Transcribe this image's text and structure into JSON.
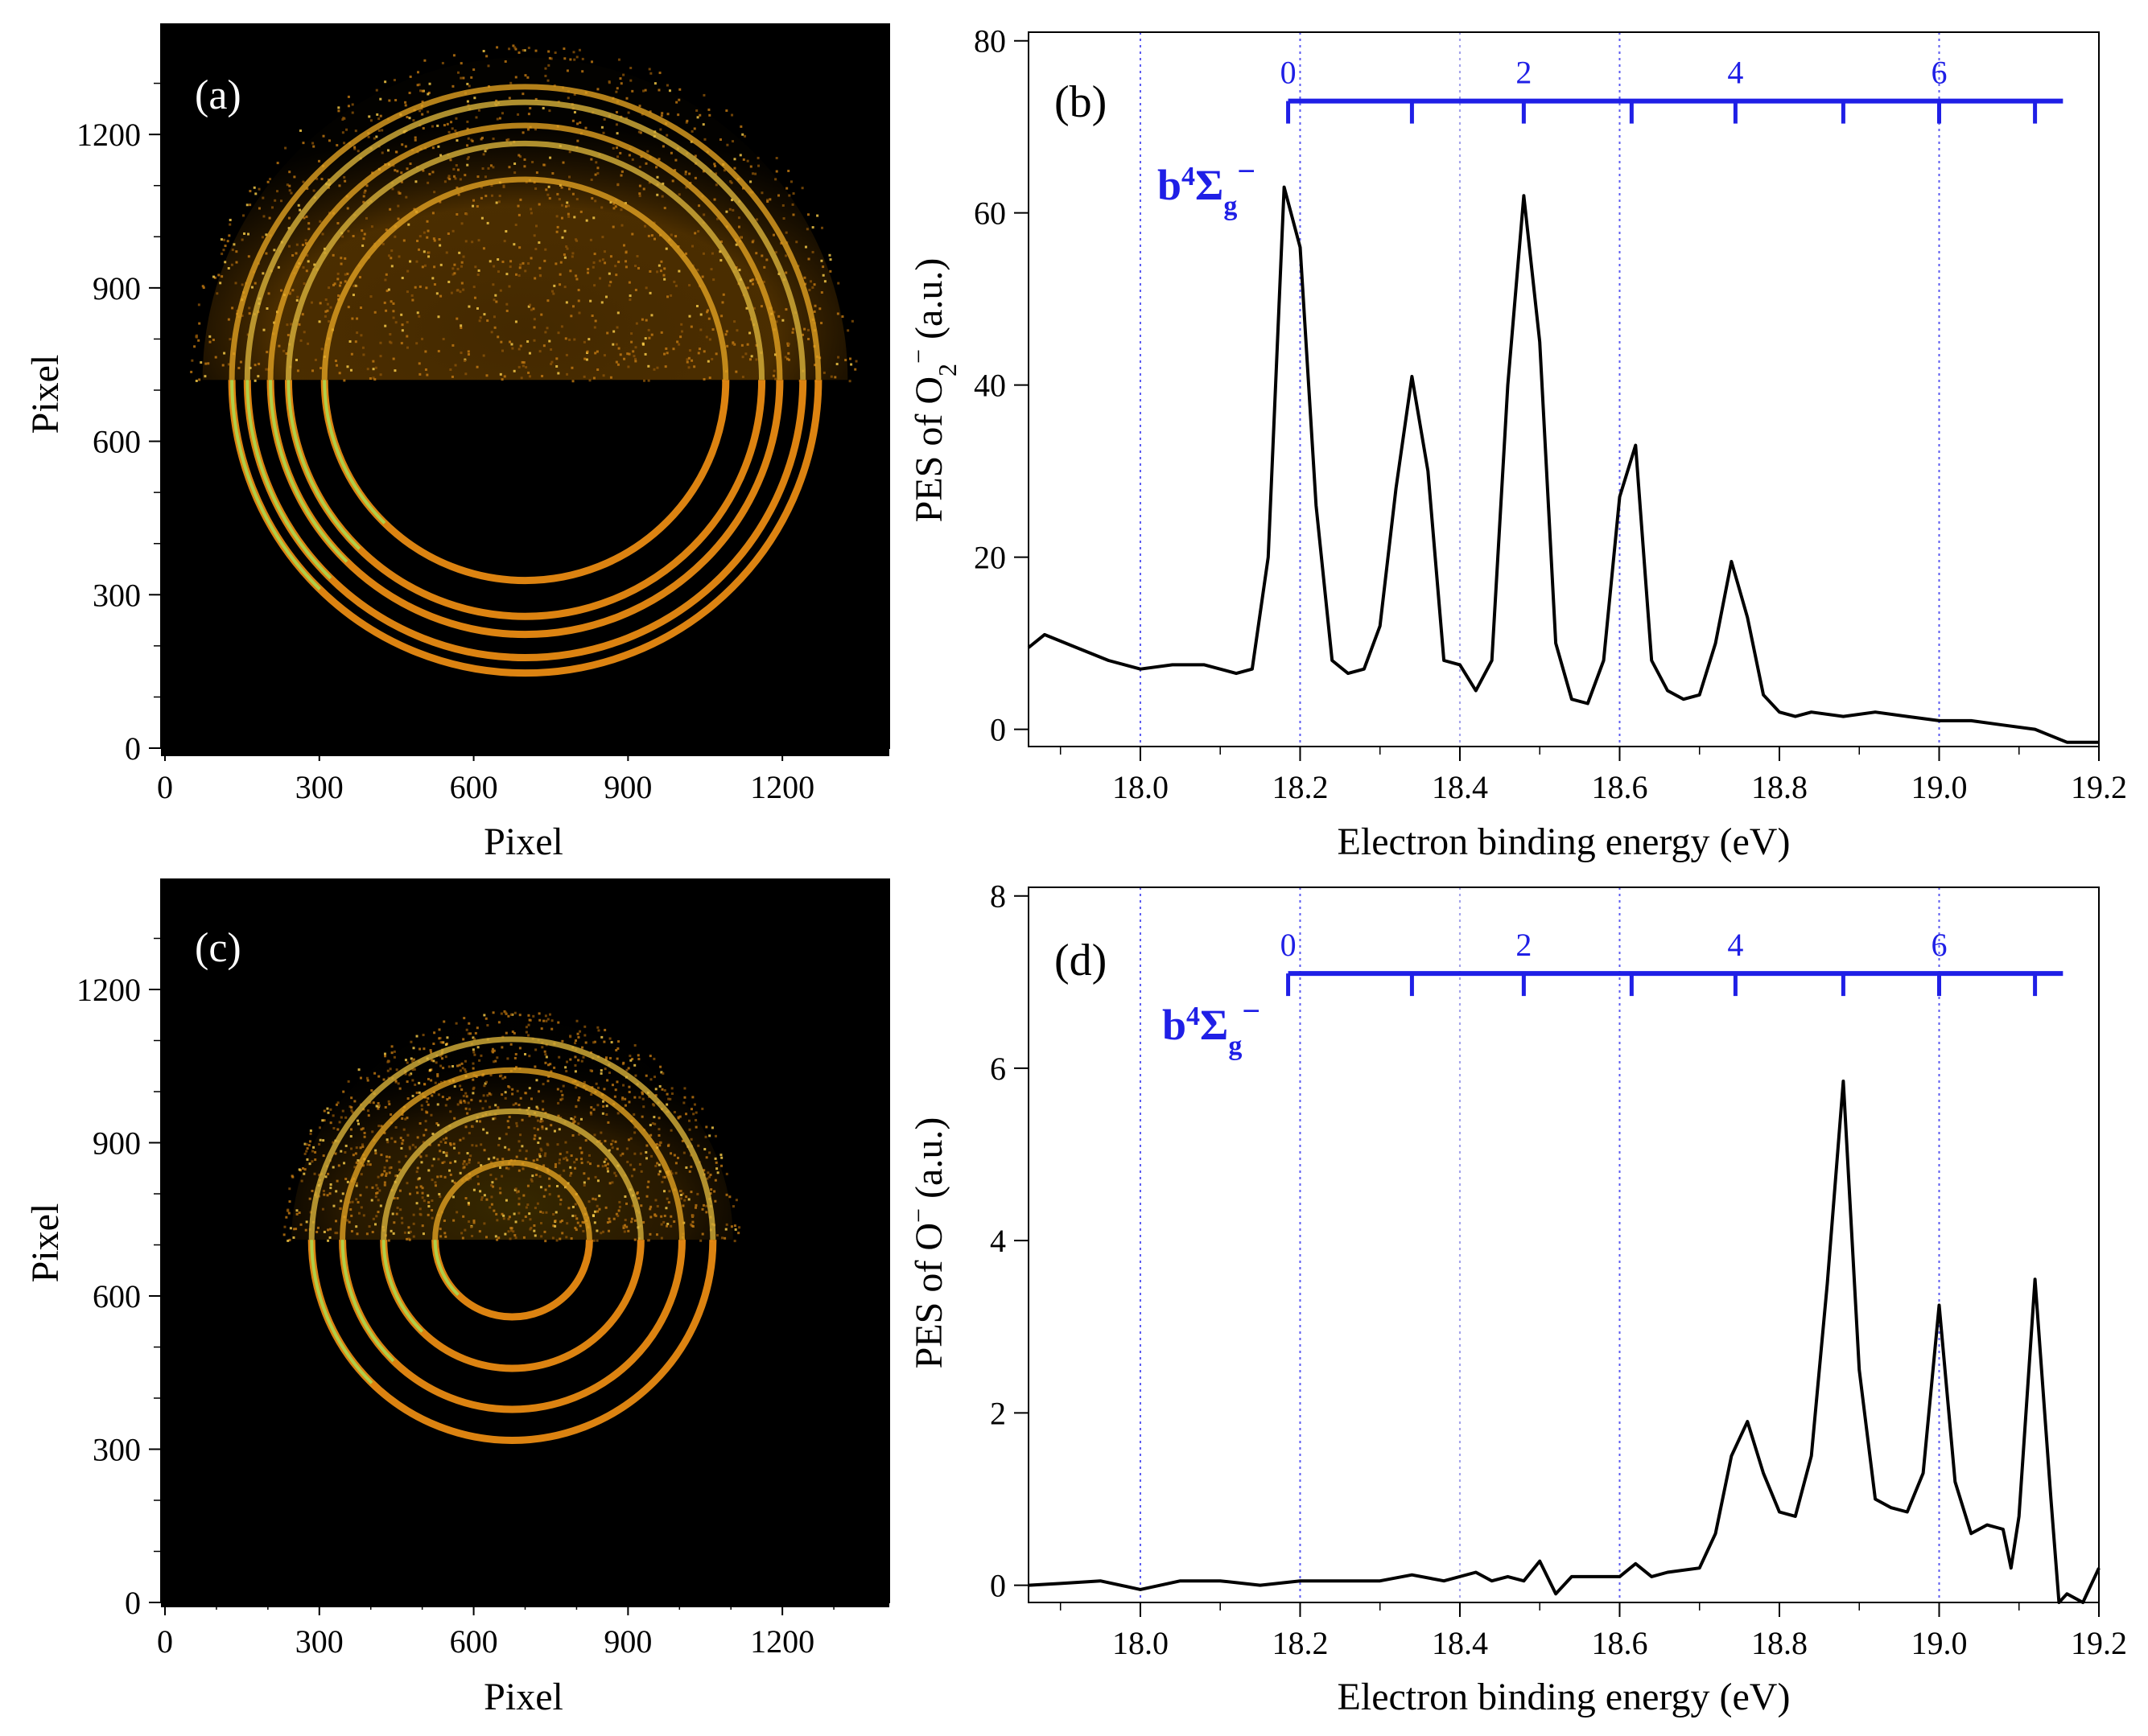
{
  "panels": {
    "a": {
      "label": "(a)"
    },
    "b": {
      "label": "(b)",
      "state_label": "b",
      "state_sup": "4",
      "state_sym": "Σ",
      "state_sub": "g",
      "state_tail": "−"
    },
    "c": {
      "label": "(c)"
    },
    "d": {
      "label": "(d)",
      "state_label": "b",
      "state_sup": "4",
      "state_sym": "Σ",
      "state_sub": "g",
      "state_tail": "−"
    }
  },
  "chart_data": [
    {
      "id": "a",
      "type": "heatmap",
      "xlabel": "Pixel",
      "ylabel": "Pixel",
      "xlim": [
        0,
        1400
      ],
      "ylim": [
        0,
        1400
      ],
      "xticks": [
        0,
        300,
        600,
        900,
        1200
      ],
      "yticks": [
        0,
        300,
        600,
        900,
        1200
      ],
      "rings": {
        "center": [
          700,
          720
        ],
        "radii": [
          390,
          460,
          495,
          540,
          570
        ]
      }
    },
    {
      "id": "b",
      "type": "line",
      "xlabel": "Electron binding energy (eV)",
      "ylabel_parts": [
        "PES of O",
        "2",
        "−",
        " (a.u.)"
      ],
      "xlim": [
        17.86,
        19.2
      ],
      "ylim": [
        -2,
        81
      ],
      "xticks": [
        "18.0",
        "18.2",
        "18.4",
        "18.6",
        "18.8",
        "19.0",
        "19.2"
      ],
      "yticks": [
        "0",
        "20",
        "40",
        "60",
        "80"
      ],
      "grid_x": [
        18.0,
        18.2,
        18.4,
        18.6,
        19.0
      ],
      "vib_scale": {
        "color": "#1f1fe6",
        "y": 73,
        "start": 18.185,
        "end": 19.155,
        "ticks_x": [
          18.185,
          18.34,
          18.48,
          18.615,
          18.745,
          18.88,
          19.0,
          19.12
        ],
        "labels": [
          {
            "text": "0",
            "x": 18.185
          },
          {
            "text": "2",
            "x": 18.48
          },
          {
            "text": "4",
            "x": 18.745
          },
          {
            "text": "6",
            "x": 19.0
          }
        ]
      },
      "x": [
        17.86,
        17.88,
        17.92,
        17.96,
        18.0,
        18.04,
        18.08,
        18.12,
        18.14,
        18.16,
        18.18,
        18.2,
        18.22,
        18.24,
        18.26,
        18.28,
        18.3,
        18.32,
        18.34,
        18.36,
        18.38,
        18.4,
        18.42,
        18.44,
        18.46,
        18.48,
        18.5,
        18.52,
        18.54,
        18.56,
        18.58,
        18.6,
        18.62,
        18.64,
        18.66,
        18.68,
        18.7,
        18.72,
        18.74,
        18.76,
        18.78,
        18.8,
        18.82,
        18.84,
        18.88,
        18.92,
        18.96,
        19.0,
        19.04,
        19.08,
        19.12,
        19.16,
        19.2
      ],
      "y": [
        9.5,
        11,
        9.5,
        8,
        7,
        7.5,
        7.5,
        6.5,
        7,
        20,
        63,
        56,
        26,
        8,
        6.5,
        7,
        12,
        28,
        41,
        30,
        8,
        7.5,
        4.5,
        8,
        40,
        62,
        45,
        10,
        3.5,
        3,
        8,
        27,
        33,
        8,
        4.5,
        3.5,
        4,
        10,
        19.5,
        13,
        4,
        2,
        1.5,
        2,
        1.5,
        2,
        1.5,
        1,
        1,
        0.5,
        0,
        -1.5,
        -1.5
      ]
    },
    {
      "id": "c",
      "type": "heatmap",
      "xlabel": "Pixel",
      "ylabel": "Pixel",
      "xlim": [
        0,
        1400
      ],
      "ylim": [
        0,
        1400
      ],
      "xticks": [
        0,
        300,
        600,
        900,
        1200
      ],
      "yticks": [
        0,
        300,
        600,
        900,
        1200
      ],
      "rings": {
        "center": [
          675,
          710
        ],
        "radii": [
          150,
          250,
          330,
          390
        ]
      }
    },
    {
      "id": "d",
      "type": "line",
      "xlabel": "Electron binding energy (eV)",
      "ylabel_parts": [
        "PES of O",
        "",
        "−",
        " (a.u.)"
      ],
      "xlim": [
        17.86,
        19.2
      ],
      "ylim": [
        -0.2,
        8.1
      ],
      "xticks": [
        "18.0",
        "18.2",
        "18.4",
        "18.6",
        "18.8",
        "19.0",
        "19.2"
      ],
      "yticks": [
        "0",
        "2",
        "4",
        "6",
        "8"
      ],
      "grid_x": [
        18.0,
        18.2,
        18.4,
        18.6,
        19.0
      ],
      "vib_scale": {
        "color": "#1f1fe6",
        "y": 7.1,
        "start": 18.185,
        "end": 19.155,
        "ticks_x": [
          18.185,
          18.34,
          18.48,
          18.615,
          18.745,
          18.88,
          19.0,
          19.12
        ],
        "labels": [
          {
            "text": "0",
            "x": 18.185
          },
          {
            "text": "2",
            "x": 18.48
          },
          {
            "text": "4",
            "x": 18.745
          },
          {
            "text": "6",
            "x": 19.0
          }
        ]
      },
      "x": [
        17.86,
        17.9,
        17.95,
        18.0,
        18.05,
        18.1,
        18.15,
        18.2,
        18.25,
        18.3,
        18.34,
        18.38,
        18.42,
        18.44,
        18.46,
        18.48,
        18.5,
        18.52,
        18.54,
        18.58,
        18.6,
        18.62,
        18.64,
        18.66,
        18.7,
        18.72,
        18.74,
        18.76,
        18.78,
        18.8,
        18.82,
        18.84,
        18.86,
        18.88,
        18.9,
        18.92,
        18.94,
        18.96,
        18.98,
        19.0,
        19.02,
        19.04,
        19.06,
        19.08,
        19.09,
        19.1,
        19.12,
        19.14,
        19.15,
        19.16,
        19.18,
        19.2
      ],
      "y": [
        0.0,
        0.02,
        0.05,
        -0.05,
        0.05,
        0.05,
        0.0,
        0.05,
        0.05,
        0.05,
        0.12,
        0.05,
        0.15,
        0.05,
        0.1,
        0.05,
        0.28,
        -0.1,
        0.1,
        0.1,
        0.1,
        0.25,
        0.1,
        0.15,
        0.2,
        0.6,
        1.5,
        1.9,
        1.3,
        0.85,
        0.8,
        1.5,
        3.5,
        5.85,
        2.5,
        1.0,
        0.9,
        0.85,
        1.3,
        3.25,
        1.2,
        0.6,
        0.7,
        0.65,
        0.2,
        0.8,
        3.55,
        1.0,
        -0.2,
        -0.1,
        -0.2,
        0.2
      ]
    }
  ]
}
